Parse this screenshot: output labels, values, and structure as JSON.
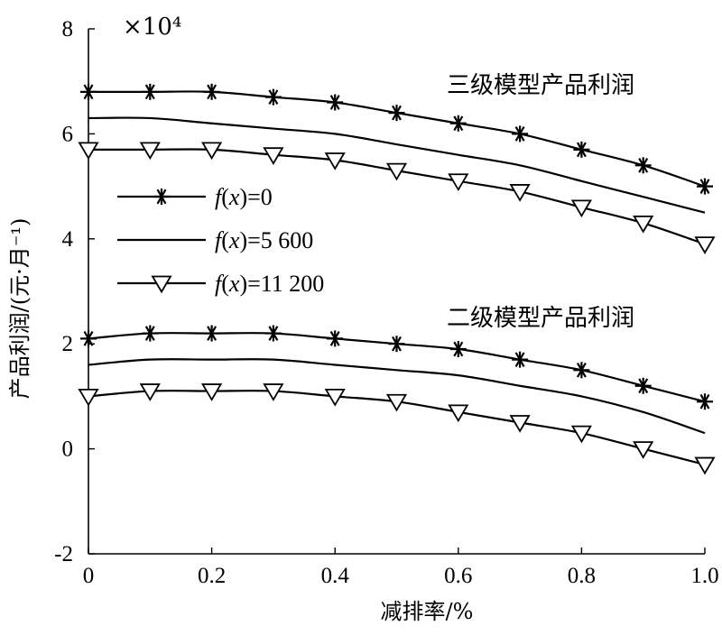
{
  "chart_data": {
    "type": "line",
    "xlabel": "减排率/%",
    "ylabel": "产品利润/(元·月⁻¹)",
    "scale_label": "×10⁴",
    "xlim": [
      0,
      1.0
    ],
    "x_ticks": [
      "0",
      "0.2",
      "0.4",
      "0.6",
      "0.8",
      "1.0"
    ],
    "y_ticks": [
      "-2",
      "0",
      "2",
      "4",
      "6",
      "8"
    ],
    "x": [
      0,
      0.1,
      0.2,
      0.3,
      0.4,
      0.5,
      0.6,
      0.7,
      0.8,
      0.9,
      1.0
    ],
    "groups": [
      {
        "annotation": "三级模型产品利润",
        "series": [
          {
            "legend_index": 0,
            "marker": "asterisk",
            "values": [
              6.8,
              6.8,
              6.8,
              6.7,
              6.6,
              6.4,
              6.2,
              6.0,
              5.7,
              5.4,
              5.0
            ]
          },
          {
            "legend_index": 1,
            "marker": "none",
            "values": [
              6.3,
              6.3,
              6.2,
              6.1,
              6.0,
              5.8,
              5.6,
              5.4,
              5.1,
              4.8,
              4.5
            ]
          },
          {
            "legend_index": 2,
            "marker": "triangle-down",
            "values": [
              5.7,
              5.7,
              5.7,
              5.6,
              5.5,
              5.3,
              5.1,
              4.9,
              4.6,
              4.3,
              3.9
            ]
          }
        ]
      },
      {
        "annotation": "二级模型产品利润",
        "series": [
          {
            "legend_index": 0,
            "marker": "asterisk",
            "values": [
              2.1,
              2.2,
              2.2,
              2.2,
              2.1,
              2.0,
              1.9,
              1.7,
              1.5,
              1.2,
              0.9
            ]
          },
          {
            "legend_index": 1,
            "marker": "none",
            "values": [
              1.6,
              1.7,
              1.7,
              1.7,
              1.6,
              1.5,
              1.4,
              1.2,
              1.0,
              0.7,
              0.3
            ]
          },
          {
            "legend_index": 2,
            "marker": "triangle-down",
            "values": [
              1.0,
              1.1,
              1.1,
              1.1,
              1.0,
              0.9,
              0.7,
              0.5,
              0.3,
              0.0,
              -0.3
            ]
          }
        ]
      }
    ],
    "legend": [
      {
        "label": "f(x)=0",
        "prefix": "f",
        "mid": "(",
        "var": "x",
        "suffix": ")=0",
        "marker": "asterisk"
      },
      {
        "label": "f(x)=5 600",
        "prefix": "f",
        "mid": "(",
        "var": "x",
        "suffix": ")=5 600",
        "marker": "none"
      },
      {
        "label": "f(x)=11 200",
        "prefix": "f",
        "mid": "(",
        "var": "x",
        "suffix": ")=11 200",
        "marker": "triangle-down"
      }
    ],
    "legend_position": "left-middle",
    "grid": false,
    "line_color": "#000000"
  }
}
